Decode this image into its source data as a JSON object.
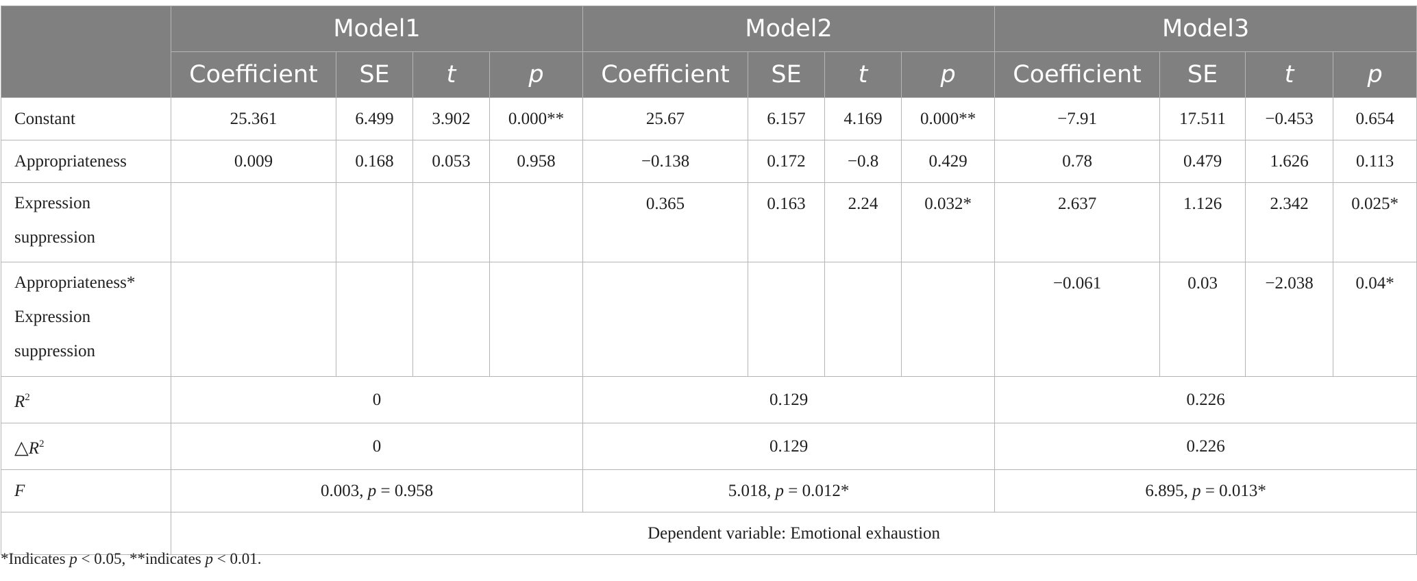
{
  "models": [
    "Model1",
    "Model2",
    "Model3"
  ],
  "columns": [
    "Coefficient",
    "SE",
    "t",
    "p"
  ],
  "rows": [
    {
      "label": "Constant",
      "cells": [
        "25.361",
        "6.499",
        "3.902",
        "0.000**",
        "25.67",
        "6.157",
        "4.169",
        "0.000**",
        "−7.91",
        "17.511",
        "−0.453",
        "0.654"
      ]
    },
    {
      "label": "Appropriateness",
      "cells": [
        "0.009",
        "0.168",
        "0.053",
        "0.958",
        "−0.138",
        "0.172",
        "−0.8",
        "0.429",
        "0.78",
        "0.479",
        "1.626",
        "0.113"
      ]
    },
    {
      "label_lines": [
        "Expression",
        "suppression"
      ],
      "cells": [
        "",
        "",
        "",
        "",
        "0.365",
        "0.163",
        "2.24",
        "0.032*",
        "2.637",
        "1.126",
        "2.342",
        "0.025*"
      ]
    },
    {
      "label_lines": [
        "Appropriateness*",
        "Expression",
        "suppression"
      ],
      "cells": [
        "",
        "",
        "",
        "",
        "",
        "",
        "",
        "",
        "−0.061",
        "0.03",
        "−2.038",
        "0.04*"
      ]
    }
  ],
  "r2": {
    "label": "R",
    "sup": "2",
    "values": [
      "0",
      "0.129",
      "0.226"
    ]
  },
  "delta_r2": {
    "symbol": "△",
    "label": "R",
    "sup": "2",
    "values": [
      "0",
      "0.129",
      "0.226"
    ]
  },
  "f": {
    "label": "F",
    "values": [
      {
        "stat": "0.003,",
        "p_label": "p",
        "p_rest": " = 0.958"
      },
      {
        "stat": "5.018,",
        "p_label": "p",
        "p_rest": " = 0.012*"
      },
      {
        "stat": "6.895,",
        "p_label": "p",
        "p_rest": " = 0.013*"
      }
    ]
  },
  "dependent_variable": "Dependent variable: Emotional exhaustion",
  "note": {
    "part1": "*Indicates ",
    "p1": "p",
    "part2": " < 0.05, **indicates ",
    "p2": "p",
    "part3": " < 0.01."
  }
}
